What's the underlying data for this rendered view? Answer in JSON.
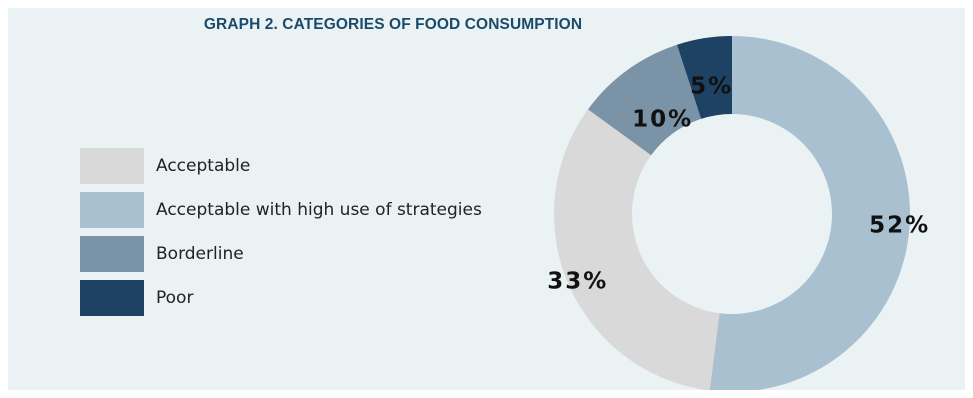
{
  "chart_data": {
    "type": "pie",
    "title": "GRAPH 2. CATEGORIES OF FOOD CONSUMPTION",
    "categories": [
      "Acceptable",
      "Acceptable with high use of strategies",
      "Borderline",
      "Poor"
    ],
    "values": [
      33,
      52,
      10,
      5
    ],
    "value_labels": [
      "33%",
      "52%",
      "10%",
      "5%"
    ],
    "colors": [
      "#d9d9d9",
      "#a8c0d0",
      "#7a93a7",
      "#1d4264"
    ],
    "legend_position": "left",
    "donut": true
  }
}
